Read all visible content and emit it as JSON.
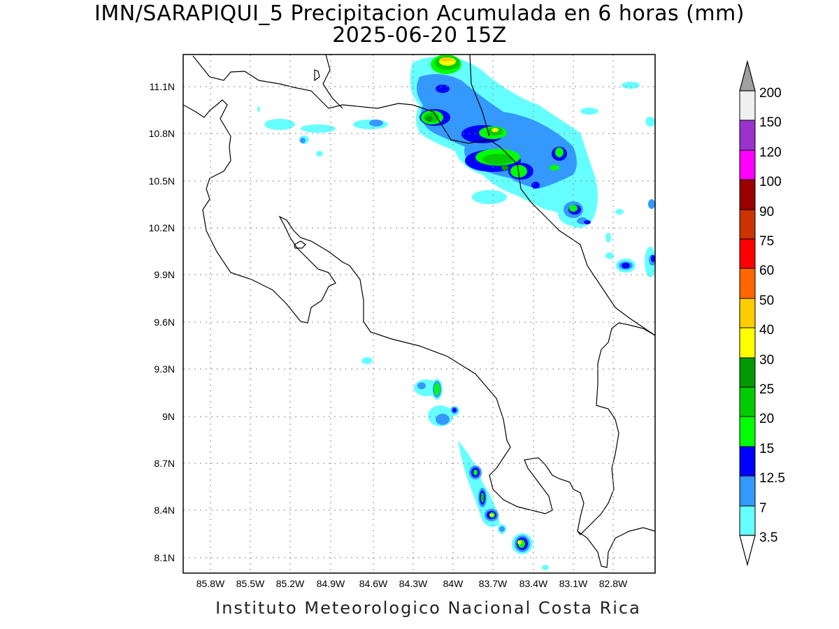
{
  "header": {
    "title": "IMN/SARAPIQUI_5 Precipitacion Acumulada en 6 horas (mm)",
    "subtitle": "2025-06-20 15Z"
  },
  "footer": {
    "credit": "Instituto Meteorologico Nacional Costa Rica"
  },
  "map": {
    "lat_ticks": [
      "11.1N",
      "10.8N",
      "10.5N",
      "10.2N",
      "9.9N",
      "9.6N",
      "9.3N",
      "9N",
      "8.7N",
      "8.4N",
      "8.1N"
    ],
    "lon_ticks": [
      "85.8W",
      "85.5W",
      "85.2W",
      "84.9W",
      "84.6W",
      "84.3W",
      "84W",
      "83.7W",
      "83.4W",
      "83.1W",
      "82.8W"
    ],
    "lat_values": [
      11.1,
      10.8,
      10.5,
      10.2,
      9.9,
      9.6,
      9.3,
      9.0,
      8.7,
      8.4,
      8.1
    ],
    "lon_values": [
      -85.8,
      -85.5,
      -85.2,
      -84.9,
      -84.6,
      -84.3,
      -84.0,
      -83.7,
      -83.4,
      -83.1,
      -82.8
    ],
    "grid": "dotted"
  },
  "legend": {
    "labels": [
      "200",
      "150",
      "120",
      "100",
      "90",
      "75",
      "60",
      "50",
      "40",
      "30",
      "25",
      "20",
      "15",
      "12.5",
      "7",
      "3.5"
    ],
    "colors": [
      "#f0f0f0",
      "#9933cc",
      "#ff00ff",
      "#990000",
      "#cc3300",
      "#ff0000",
      "#ff6600",
      "#ffcc00",
      "#ffff00",
      "#009900",
      "#00cc00",
      "#00ff00",
      "#0000ff",
      "#3399ff",
      "#66ffff",
      "#ffffff"
    ],
    "overflow_color": "#a0a0a0"
  }
}
